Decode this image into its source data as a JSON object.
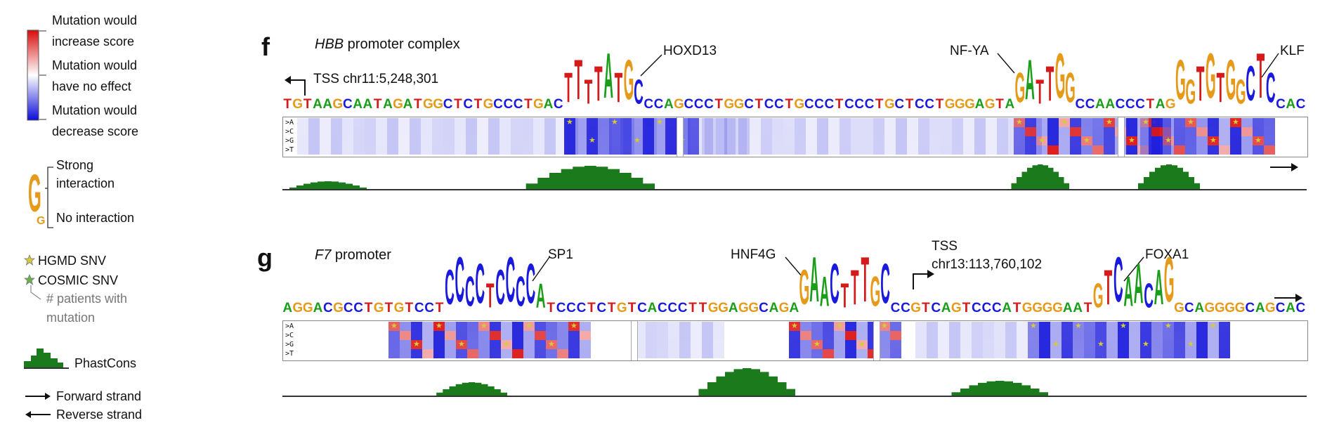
{
  "legend": {
    "increase": [
      "Mutation would",
      "increase score"
    ],
    "no_effect": [
      "Mutation would",
      "have no effect"
    ],
    "decrease": [
      "Mutation would",
      "decrease score"
    ],
    "strong": [
      "Strong",
      "interaction"
    ],
    "no_interaction": "No interaction",
    "hgmd": "HGMD SNV",
    "cosmic": "COSMIC SNV",
    "patients": [
      "# patients with",
      "mutation"
    ],
    "phastcons": "PhastCons",
    "forward": "Forward strand",
    "reverse": "Reverse strand",
    "logo_big": "G",
    "logo_small": "G"
  },
  "panels": [
    {
      "letter": "f",
      "title_italic": "HBB",
      "title_rest": " promoter complex",
      "tss": "TSS chr11:5,248,301",
      "seq_left": "TGTAAGCAATAGATGGCTCTGCCCTGACTTTTATGCCCAGCCCTGGCTCCTGCCCTCCCTGCTCCTGGGAGTAGATTGGCCAACCCTAGGGTGTGGCTCCAC",
      "annotations": [
        "HOXD13",
        "NF-YA",
        "KLF"
      ],
      "row_labels": [
        ">A",
        ">C",
        ">G",
        ">T"
      ]
    },
    {
      "letter": "g",
      "title_italic": "F7",
      "title_rest": " promoter",
      "tss_label": "TSS",
      "tss": "chr13:113,760,102",
      "seq_left": "AGGACGCCTGTGTCCTCCCCTCCCCATCCCTCTGTCACCCTTGGAGGCAGAGAACTTTGCCCGTCAGTCCCATGGGGAATGTCAACAGGCAGGGGCAGCAC",
      "annotations": [
        "SP1",
        "HNF4G",
        "FOXA1"
      ],
      "row_labels": [
        ">A",
        ">C",
        ">G",
        ">T"
      ]
    }
  ],
  "colors": {
    "A": "#1a9e1a",
    "C": "#1a1adc",
    "G": "#e69a1a",
    "T": "#d41a1a",
    "phast": "#1b7a1b",
    "star": "#d8c93a"
  }
}
